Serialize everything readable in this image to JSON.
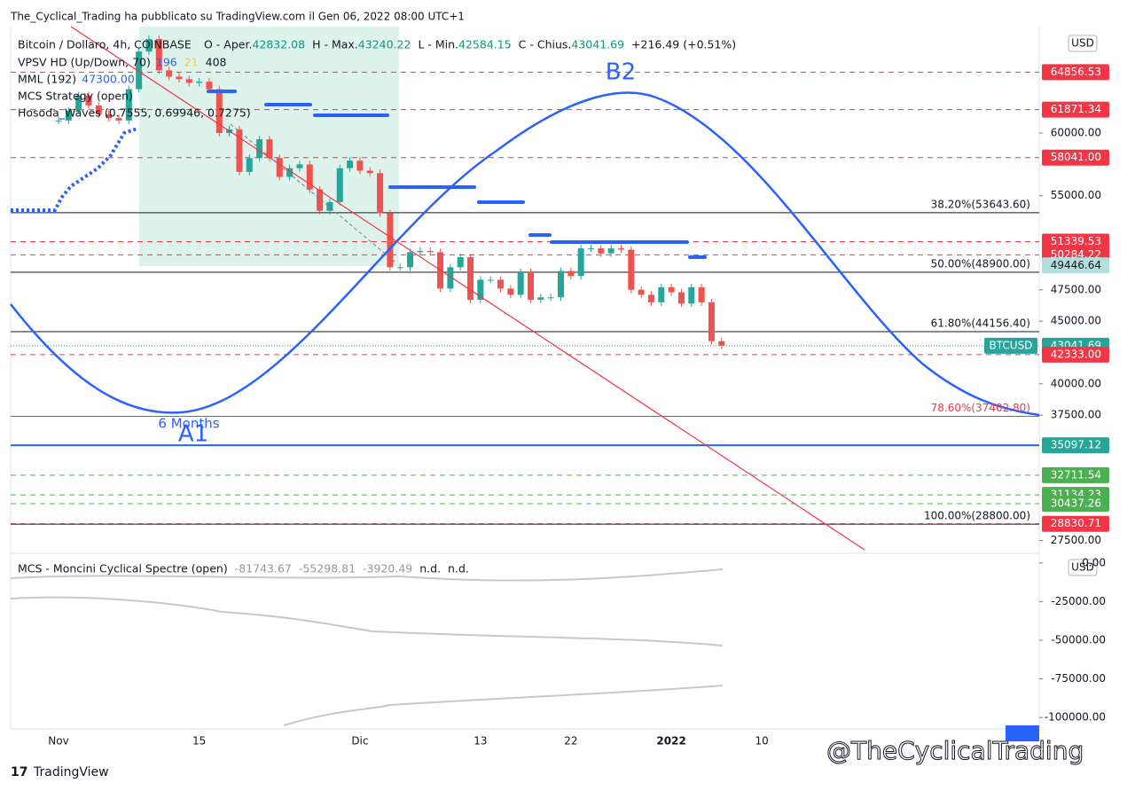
{
  "header": {
    "published": "The_Cyclical_Trading ha pubblicato su TradingView.com il Gen 06, 2022 08:00 UTC+1",
    "symbol": "Bitcoin / Dollaro, 4h, COINBASE",
    "ohlc": [
      "O - Aper.",
      "42832.08",
      "H - Max.",
      "43240.22",
      "L - Min.",
      "42584.15",
      "C - Chius.",
      "43041.69",
      "+216.49 (+0.51%)"
    ],
    "indicators": [
      {
        "name": "VPSV HD (Up/Down, 70)",
        "values": [
          "196",
          "21",
          "408"
        ]
      },
      {
        "name": "MML (192)",
        "values": [
          "47300.00"
        ]
      },
      {
        "name": "MCS Strategy (open)",
        "values": []
      },
      {
        "name": "Hosoda_Waves (0.7555, 0.69946, 0.7275)",
        "values": []
      }
    ],
    "currency": "USD"
  },
  "chart_data": {
    "type": "candlestick",
    "values": [
      61000,
      61800,
      63000,
      62200,
      61500,
      61200,
      61000,
      63500,
      66500,
      67500,
      65000,
      64500,
      64300,
      64000,
      64100,
      63500,
      60000,
      60300,
      56900,
      58000,
      59500,
      58000,
      56500,
      57200,
      57500,
      55500,
      53800,
      54500,
      57200,
      57800,
      57000,
      56800,
      53600,
      49300,
      49300,
      50500,
      50600,
      50500,
      47600,
      49300,
      50100,
      46700,
      48300,
      48300,
      47600,
      47100,
      48900,
      46700,
      46900,
      46900,
      49000,
      48600,
      50800,
      50800,
      50400,
      50800,
      50700,
      47500,
      47100,
      46500,
      47700,
      47300,
      46400,
      47700,
      46500,
      43400,
      43041.69
    ],
    "up_color": "#26a69a",
    "down_color": "#ef5350",
    "ylim": [
      26620,
      68490
    ],
    "yticks": [
      {
        "value": 27500,
        "label": "27500.00"
      },
      {
        "value": 37500,
        "label": "37500.00"
      },
      {
        "value": 40000,
        "label": "40000.00"
      },
      {
        "value": 45000,
        "label": "45000.00"
      },
      {
        "value": 47500,
        "label": "47500.00"
      },
      {
        "value": 55000,
        "label": "55000.00"
      },
      {
        "value": 60000,
        "label": "60000.00"
      }
    ],
    "x_labels": [
      "Nov",
      "15",
      "Dic",
      "13",
      "22",
      "2022",
      "10"
    ],
    "levels": [
      {
        "value": 64856.53,
        "label": "64856.53",
        "color": "#f23645",
        "style": "dash"
      },
      {
        "value": 61871.34,
        "label": "61871.34",
        "color": "#f23645",
        "style": "dash"
      },
      {
        "value": 58041.0,
        "label": "58041.00",
        "color": "#f23645",
        "style": "dash"
      },
      {
        "value": 51339.53,
        "label": "51339.53",
        "color": "#f23645",
        "style": "dash"
      },
      {
        "value": 50284.22,
        "label": "50284.22",
        "color": "#f23645",
        "style": "dash"
      },
      {
        "value": 49446.64,
        "label": "49446.64",
        "color": "#b2dfdb",
        "style": "none"
      },
      {
        "value": 43041.69,
        "label": "43041.69",
        "color": "#26a69a",
        "style": "dot",
        "name": "BTCUSD"
      },
      {
        "value": 42333.0,
        "label": "42333.00",
        "color": "#f23645",
        "style": "dash"
      },
      {
        "value": 35097.12,
        "label": "35097.12",
        "color": "#26a69a",
        "style": "dash"
      },
      {
        "value": 32711.54,
        "label": "32711.54",
        "color": "#4caf50",
        "style": "dash"
      },
      {
        "value": 31134.23,
        "label": "31134.23",
        "color": "#4caf50",
        "style": "dash"
      },
      {
        "value": 30437.26,
        "label": "30437.26",
        "color": "#4caf50",
        "style": "dash"
      },
      {
        "value": 28830.71,
        "label": "28830.71",
        "color": "#f23645",
        "style": "dash"
      }
    ],
    "fib": [
      {
        "value": 53643.6,
        "label": "38.20%(53643.60)",
        "color": "#131722"
      },
      {
        "value": 48900.0,
        "label": "50.00%(48900.00)",
        "color": "#131722"
      },
      {
        "value": 44156.4,
        "label": "61.80%(44156.40)",
        "color": "#131722"
      },
      {
        "value": 37402.8,
        "label": "78.60%(37402.80)",
        "color": "#f23645"
      },
      {
        "value": 28800.0,
        "label": "100.00%(28800.00)",
        "color": "#131722"
      }
    ],
    "support_line": {
      "value": 35097.12,
      "color": "#2962ff"
    },
    "annotations": [
      "B2",
      "A1",
      "6 Months"
    ]
  },
  "lower_pane": {
    "title": "MCS - Moncini Cyclical Spectre (open)",
    "values": [
      "-81743.67",
      "-55298.81",
      "-3920.49",
      "n.d.",
      "n.d."
    ],
    "ylim": [
      3900,
      -107400
    ],
    "yticks": [
      {
        "value": 0,
        "label": "0.00"
      },
      {
        "value": -25000,
        "label": "-25000.00"
      },
      {
        "value": -50000,
        "label": "-50000.00"
      },
      {
        "value": -75000,
        "label": "-75000.00"
      },
      {
        "value": -100000,
        "label": "-100000.00"
      }
    ]
  },
  "footer": {
    "brand": "TradingView",
    "watermark": "@TheCyclicalTrading"
  }
}
